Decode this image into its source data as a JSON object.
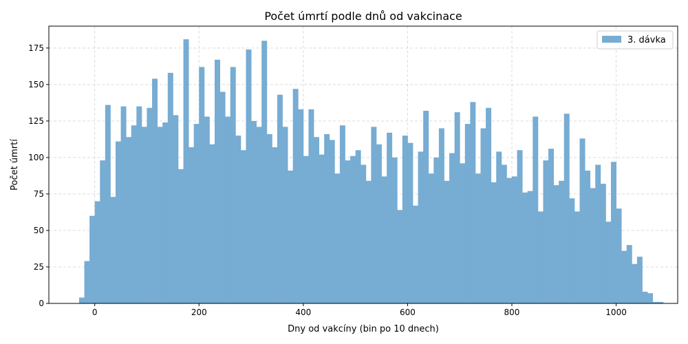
{
  "chart_data": {
    "type": "bar",
    "title": "Počet úmrtí podle dnů od vakcinace",
    "xlabel": "Dny od vakcíny (bin po 10 dnech)",
    "ylabel": "Počet úmrtí",
    "xlim": [
      -88,
      1118
    ],
    "ylim": [
      0,
      190
    ],
    "xticks": [
      0,
      200,
      400,
      600,
      800,
      1000
    ],
    "yticks": [
      0,
      25,
      50,
      75,
      100,
      125,
      150,
      175
    ],
    "grid": true,
    "legend_position": "top-right",
    "bar_color": "#77acd3",
    "bin_width": 10,
    "series": [
      {
        "name": "3. dávka",
        "bins": [
          {
            "x0": -30,
            "value": 4
          },
          {
            "x0": -20,
            "value": 29
          },
          {
            "x0": -10,
            "value": 60
          },
          {
            "x0": 0,
            "value": 70
          },
          {
            "x0": 10,
            "value": 98
          },
          {
            "x0": 20,
            "value": 136
          },
          {
            "x0": 30,
            "value": 73
          },
          {
            "x0": 40,
            "value": 111
          },
          {
            "x0": 50,
            "value": 135
          },
          {
            "x0": 60,
            "value": 114
          },
          {
            "x0": 70,
            "value": 122
          },
          {
            "x0": 80,
            "value": 135
          },
          {
            "x0": 90,
            "value": 121
          },
          {
            "x0": 100,
            "value": 134
          },
          {
            "x0": 110,
            "value": 154
          },
          {
            "x0": 120,
            "value": 121
          },
          {
            "x0": 130,
            "value": 124
          },
          {
            "x0": 140,
            "value": 158
          },
          {
            "x0": 150,
            "value": 129
          },
          {
            "x0": 160,
            "value": 92
          },
          {
            "x0": 170,
            "value": 181
          },
          {
            "x0": 180,
            "value": 107
          },
          {
            "x0": 190,
            "value": 123
          },
          {
            "x0": 200,
            "value": 162
          },
          {
            "x0": 210,
            "value": 128
          },
          {
            "x0": 220,
            "value": 109
          },
          {
            "x0": 230,
            "value": 167
          },
          {
            "x0": 240,
            "value": 145
          },
          {
            "x0": 250,
            "value": 128
          },
          {
            "x0": 260,
            "value": 162
          },
          {
            "x0": 270,
            "value": 115
          },
          {
            "x0": 280,
            "value": 105
          },
          {
            "x0": 290,
            "value": 174
          },
          {
            "x0": 300,
            "value": 125
          },
          {
            "x0": 310,
            "value": 121
          },
          {
            "x0": 320,
            "value": 180
          },
          {
            "x0": 330,
            "value": 116
          },
          {
            "x0": 340,
            "value": 107
          },
          {
            "x0": 350,
            "value": 143
          },
          {
            "x0": 360,
            "value": 121
          },
          {
            "x0": 370,
            "value": 91
          },
          {
            "x0": 380,
            "value": 147
          },
          {
            "x0": 390,
            "value": 133
          },
          {
            "x0": 400,
            "value": 101
          },
          {
            "x0": 410,
            "value": 133
          },
          {
            "x0": 420,
            "value": 114
          },
          {
            "x0": 430,
            "value": 102
          },
          {
            "x0": 440,
            "value": 116
          },
          {
            "x0": 450,
            "value": 112
          },
          {
            "x0": 460,
            "value": 89
          },
          {
            "x0": 470,
            "value": 122
          },
          {
            "x0": 480,
            "value": 98
          },
          {
            "x0": 490,
            "value": 101
          },
          {
            "x0": 500,
            "value": 105
          },
          {
            "x0": 510,
            "value": 95
          },
          {
            "x0": 520,
            "value": 84
          },
          {
            "x0": 530,
            "value": 121
          },
          {
            "x0": 540,
            "value": 109
          },
          {
            "x0": 550,
            "value": 87
          },
          {
            "x0": 560,
            "value": 117
          },
          {
            "x0": 570,
            "value": 100
          },
          {
            "x0": 580,
            "value": 64
          },
          {
            "x0": 590,
            "value": 115
          },
          {
            "x0": 600,
            "value": 110
          },
          {
            "x0": 610,
            "value": 67
          },
          {
            "x0": 620,
            "value": 104
          },
          {
            "x0": 630,
            "value": 132
          },
          {
            "x0": 640,
            "value": 89
          },
          {
            "x0": 650,
            "value": 100
          },
          {
            "x0": 660,
            "value": 120
          },
          {
            "x0": 670,
            "value": 84
          },
          {
            "x0": 680,
            "value": 103
          },
          {
            "x0": 690,
            "value": 131
          },
          {
            "x0": 700,
            "value": 96
          },
          {
            "x0": 710,
            "value": 123
          },
          {
            "x0": 720,
            "value": 138
          },
          {
            "x0": 730,
            "value": 89
          },
          {
            "x0": 740,
            "value": 120
          },
          {
            "x0": 750,
            "value": 134
          },
          {
            "x0": 760,
            "value": 83
          },
          {
            "x0": 770,
            "value": 104
          },
          {
            "x0": 780,
            "value": 95
          },
          {
            "x0": 790,
            "value": 86
          },
          {
            "x0": 800,
            "value": 87
          },
          {
            "x0": 810,
            "value": 105
          },
          {
            "x0": 820,
            "value": 76
          },
          {
            "x0": 830,
            "value": 77
          },
          {
            "x0": 840,
            "value": 128
          },
          {
            "x0": 850,
            "value": 63
          },
          {
            "x0": 860,
            "value": 98
          },
          {
            "x0": 870,
            "value": 106
          },
          {
            "x0": 880,
            "value": 81
          },
          {
            "x0": 890,
            "value": 84
          },
          {
            "x0": 900,
            "value": 130
          },
          {
            "x0": 910,
            "value": 72
          },
          {
            "x0": 920,
            "value": 63
          },
          {
            "x0": 930,
            "value": 113
          },
          {
            "x0": 940,
            "value": 91
          },
          {
            "x0": 950,
            "value": 79
          },
          {
            "x0": 960,
            "value": 95
          },
          {
            "x0": 970,
            "value": 82
          },
          {
            "x0": 980,
            "value": 56
          },
          {
            "x0": 990,
            "value": 97
          },
          {
            "x0": 1000,
            "value": 65
          },
          {
            "x0": 1010,
            "value": 36
          },
          {
            "x0": 1020,
            "value": 40
          },
          {
            "x0": 1030,
            "value": 27
          },
          {
            "x0": 1040,
            "value": 32
          },
          {
            "x0": 1050,
            "value": 8
          },
          {
            "x0": 1060,
            "value": 7
          },
          {
            "x0": 1070,
            "value": 1
          },
          {
            "x0": 1080,
            "value": 1
          }
        ]
      }
    ]
  }
}
